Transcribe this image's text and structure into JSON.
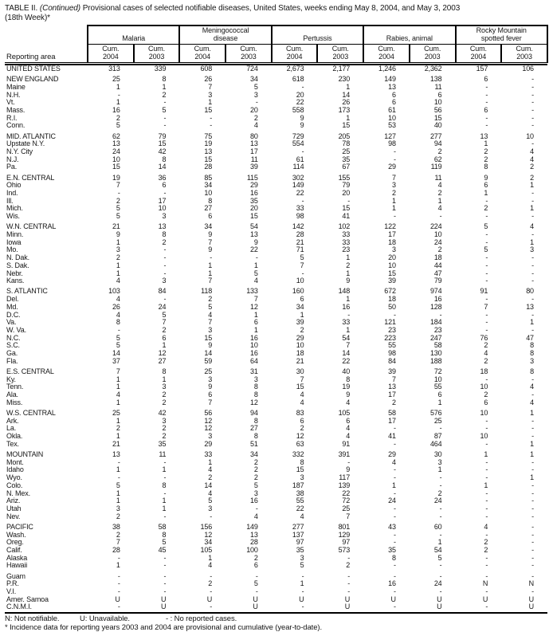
{
  "title": {
    "label": "TABLE II.",
    "continued": "(Continued)",
    "text": "Provisional cases of selected notifiable diseases, United States, weeks ending May 8, 2004, and May 3, 2003",
    "week": "(18th Week)*"
  },
  "table": {
    "reporting_area_label": "Reporting area",
    "column_groups": [
      {
        "name": "Malaria",
        "sub": [
          "Cum.\n2004",
          "Cum.\n2003"
        ]
      },
      {
        "name": "Meningococcal\ndisease",
        "sub": [
          "Cum.\n2004",
          "Cum.\n2003"
        ]
      },
      {
        "name": "Pertussis",
        "sub": [
          "Cum.\n2004",
          "Cum.\n2003"
        ]
      },
      {
        "name": "Rabies, animal",
        "sub": [
          "Cum.\n2004",
          "Cum.\n2003"
        ]
      },
      {
        "name": "Rocky Mountain\nspotted fever",
        "sub": [
          "Cum.\n2004",
          "Cum.\n2003"
        ]
      }
    ],
    "sections": [
      {
        "rows": [
          [
            "UNITED STATES",
            "313",
            "339",
            "608",
            "724",
            "2,673",
            "2,177",
            "1,246",
            "2,362",
            "157",
            "106"
          ]
        ]
      },
      {
        "rows": [
          [
            "NEW ENGLAND",
            "25",
            "8",
            "26",
            "34",
            "618",
            "230",
            "149",
            "138",
            "6",
            "-"
          ],
          [
            "Maine",
            "1",
            "1",
            "7",
            "5",
            "-",
            "1",
            "13",
            "11",
            "-",
            "-"
          ],
          [
            "N.H.",
            "-",
            "2",
            "3",
            "3",
            "20",
            "14",
            "6",
            "6",
            "-",
            "-"
          ],
          [
            "Vt.",
            "1",
            "-",
            "1",
            "-",
            "22",
            "26",
            "6",
            "10",
            "-",
            "-"
          ],
          [
            "Mass.",
            "16",
            "5",
            "15",
            "20",
            "558",
            "173",
            "61",
            "56",
            "6",
            "-"
          ],
          [
            "R.I.",
            "2",
            "-",
            "-",
            "2",
            "9",
            "1",
            "10",
            "15",
            "-",
            "-"
          ],
          [
            "Conn.",
            "5",
            "-",
            "-",
            "4",
            "9",
            "15",
            "53",
            "40",
            "-",
            "-"
          ]
        ]
      },
      {
        "rows": [
          [
            "MID. ATLANTIC",
            "62",
            "79",
            "75",
            "80",
            "729",
            "205",
            "127",
            "277",
            "13",
            "10"
          ],
          [
            "Upstate N.Y.",
            "13",
            "15",
            "19",
            "13",
            "554",
            "78",
            "98",
            "94",
            "1",
            "-"
          ],
          [
            "N.Y. City",
            "24",
            "42",
            "13",
            "17",
            "-",
            "25",
            "-",
            "2",
            "2",
            "4"
          ],
          [
            "N.J.",
            "10",
            "8",
            "15",
            "11",
            "61",
            "35",
            "-",
            "62",
            "2",
            "4"
          ],
          [
            "Pa.",
            "15",
            "14",
            "28",
            "39",
            "114",
            "67",
            "29",
            "119",
            "8",
            "2"
          ]
        ]
      },
      {
        "rows": [
          [
            "E.N. CENTRAL",
            "19",
            "36",
            "85",
            "115",
            "302",
            "155",
            "7",
            "11",
            "9",
            "2"
          ],
          [
            "Ohio",
            "7",
            "6",
            "34",
            "29",
            "149",
            "79",
            "3",
            "4",
            "6",
            "1"
          ],
          [
            "Ind.",
            "-",
            "-",
            "10",
            "16",
            "22",
            "20",
            "2",
            "2",
            "1",
            "-"
          ],
          [
            "Ill.",
            "2",
            "17",
            "8",
            "35",
            "-",
            "-",
            "1",
            "1",
            "-",
            "-"
          ],
          [
            "Mich.",
            "5",
            "10",
            "27",
            "20",
            "33",
            "15",
            "1",
            "4",
            "2",
            "1"
          ],
          [
            "Wis.",
            "5",
            "3",
            "6",
            "15",
            "98",
            "41",
            "-",
            "-",
            "-",
            "-"
          ]
        ]
      },
      {
        "rows": [
          [
            "W.N. CENTRAL",
            "21",
            "13",
            "34",
            "54",
            "142",
            "102",
            "122",
            "224",
            "5",
            "4"
          ],
          [
            "Minn.",
            "9",
            "8",
            "9",
            "13",
            "28",
            "33",
            "17",
            "10",
            "-",
            "-"
          ],
          [
            "Iowa",
            "1",
            "2",
            "7",
            "9",
            "21",
            "33",
            "18",
            "24",
            "-",
            "1"
          ],
          [
            "Mo.",
            "3",
            "-",
            "9",
            "22",
            "71",
            "23",
            "3",
            "2",
            "5",
            "3"
          ],
          [
            "N. Dak.",
            "2",
            "-",
            "-",
            "-",
            "5",
            "1",
            "20",
            "18",
            "-",
            "-"
          ],
          [
            "S. Dak.",
            "1",
            "-",
            "1",
            "1",
            "7",
            "2",
            "10",
            "44",
            "-",
            "-"
          ],
          [
            "Nebr.",
            "1",
            "-",
            "1",
            "5",
            "-",
            "1",
            "15",
            "47",
            "-",
            "-"
          ],
          [
            "Kans.",
            "4",
            "3",
            "7",
            "4",
            "10",
            "9",
            "39",
            "79",
            "-",
            "-"
          ]
        ]
      },
      {
        "rows": [
          [
            "S. ATLANTIC",
            "103",
            "84",
            "118",
            "133",
            "160",
            "148",
            "672",
            "974",
            "91",
            "80"
          ],
          [
            "Del.",
            "4",
            "-",
            "2",
            "7",
            "6",
            "1",
            "18",
            "16",
            "-",
            "-"
          ],
          [
            "Md.",
            "26",
            "24",
            "5",
            "12",
            "34",
            "16",
            "50",
            "128",
            "7",
            "13"
          ],
          [
            "D.C.",
            "4",
            "5",
            "4",
            "1",
            "1",
            "-",
            "-",
            "-",
            "-",
            "-"
          ],
          [
            "Va.",
            "8",
            "7",
            "7",
            "6",
            "39",
            "33",
            "121",
            "184",
            "-",
            "1"
          ],
          [
            "W. Va.",
            "-",
            "2",
            "3",
            "1",
            "2",
            "1",
            "23",
            "23",
            "-",
            "-"
          ],
          [
            "N.C.",
            "5",
            "6",
            "15",
            "16",
            "29",
            "54",
            "223",
            "247",
            "76",
            "47"
          ],
          [
            "S.C.",
            "5",
            "1",
            "9",
            "10",
            "10",
            "7",
            "55",
            "58",
            "2",
            "8"
          ],
          [
            "Ga.",
            "14",
            "12",
            "14",
            "16",
            "18",
            "14",
            "98",
            "130",
            "4",
            "8"
          ],
          [
            "Fla.",
            "37",
            "27",
            "59",
            "64",
            "21",
            "22",
            "84",
            "188",
            "2",
            "3"
          ]
        ]
      },
      {
        "rows": [
          [
            "E.S. CENTRAL",
            "7",
            "8",
            "25",
            "31",
            "30",
            "40",
            "39",
            "72",
            "18",
            "8"
          ],
          [
            "Ky.",
            "1",
            "1",
            "3",
            "3",
            "7",
            "8",
            "7",
            "10",
            "-",
            "-"
          ],
          [
            "Tenn.",
            "1",
            "3",
            "9",
            "8",
            "15",
            "19",
            "13",
            "55",
            "10",
            "4"
          ],
          [
            "Ala.",
            "4",
            "2",
            "6",
            "8",
            "4",
            "9",
            "17",
            "6",
            "2",
            "-"
          ],
          [
            "Miss.",
            "1",
            "2",
            "7",
            "12",
            "4",
            "4",
            "2",
            "1",
            "6",
            "4"
          ]
        ]
      },
      {
        "rows": [
          [
            "W.S. CENTRAL",
            "25",
            "42",
            "56",
            "94",
            "83",
            "105",
            "58",
            "576",
            "10",
            "1"
          ],
          [
            "Ark.",
            "1",
            "3",
            "12",
            "8",
            "6",
            "6",
            "17",
            "25",
            "-",
            "-"
          ],
          [
            "La.",
            "2",
            "2",
            "12",
            "27",
            "2",
            "4",
            "-",
            "-",
            "-",
            "-"
          ],
          [
            "Okla.",
            "1",
            "2",
            "3",
            "8",
            "12",
            "4",
            "41",
            "87",
            "10",
            "-"
          ],
          [
            "Tex.",
            "21",
            "35",
            "29",
            "51",
            "63",
            "91",
            "-",
            "464",
            "-",
            "1"
          ]
        ]
      },
      {
        "rows": [
          [
            "MOUNTAIN",
            "13",
            "11",
            "33",
            "34",
            "332",
            "391",
            "29",
            "30",
            "1",
            "1"
          ],
          [
            "Mont.",
            "-",
            "-",
            "1",
            "2",
            "8",
            "-",
            "4",
            "3",
            "-",
            "-"
          ],
          [
            "Idaho",
            "1",
            "1",
            "4",
            "2",
            "15",
            "9",
            "-",
            "1",
            "-",
            "-"
          ],
          [
            "Wyo.",
            "-",
            "-",
            "2",
            "2",
            "3",
            "117",
            "-",
            "-",
            "-",
            "1"
          ],
          [
            "Colo.",
            "5",
            "8",
            "14",
            "5",
            "187",
            "139",
            "1",
            "-",
            "1",
            "-"
          ],
          [
            "N. Mex.",
            "1",
            "-",
            "4",
            "3",
            "38",
            "22",
            "-",
            "2",
            "-",
            "-"
          ],
          [
            "Ariz.",
            "1",
            "1",
            "5",
            "16",
            "55",
            "72",
            "24",
            "24",
            "-",
            "-"
          ],
          [
            "Utah",
            "3",
            "1",
            "3",
            "-",
            "22",
            "25",
            "-",
            "-",
            "-",
            "-"
          ],
          [
            "Nev.",
            "2",
            "-",
            "-",
            "4",
            "4",
            "7",
            "-",
            "-",
            "-",
            "-"
          ]
        ]
      },
      {
        "rows": [
          [
            "PACIFIC",
            "38",
            "58",
            "156",
            "149",
            "277",
            "801",
            "43",
            "60",
            "4",
            "-"
          ],
          [
            "Wash.",
            "2",
            "8",
            "12",
            "13",
            "137",
            "129",
            "-",
            "-",
            "-",
            "-"
          ],
          [
            "Oreg.",
            "7",
            "5",
            "34",
            "28",
            "97",
            "97",
            "-",
            "1",
            "2",
            "-"
          ],
          [
            "Calif.",
            "28",
            "45",
            "105",
            "100",
            "35",
            "573",
            "35",
            "54",
            "2",
            "-"
          ],
          [
            "Alaska",
            "-",
            "-",
            "1",
            "2",
            "3",
            "-",
            "8",
            "5",
            "-",
            "-"
          ],
          [
            "Hawaii",
            "1",
            "-",
            "4",
            "6",
            "5",
            "2",
            "-",
            "-",
            "-",
            "-"
          ]
        ]
      },
      {
        "rows": [
          [
            "Guam",
            "-",
            "-",
            "-",
            "-",
            "-",
            "-",
            "-",
            "-",
            "-",
            "-"
          ],
          [
            "P.R.",
            "-",
            "-",
            "2",
            "5",
            "1",
            "-",
            "16",
            "24",
            "N",
            "N"
          ],
          [
            "V.I.",
            "-",
            "-",
            "-",
            "-",
            "-",
            "-",
            "-",
            "-",
            "-",
            "-"
          ],
          [
            "Amer. Samoa",
            "U",
            "U",
            "U",
            "U",
            "U",
            "U",
            "U",
            "U",
            "U",
            "U"
          ],
          [
            "C.N.M.I.",
            "-",
            "U",
            "-",
            "U",
            "-",
            "U",
            "-",
            "U",
            "-",
            "U"
          ]
        ]
      }
    ]
  },
  "footnotes": {
    "legend_n": "N: Not notifiable.",
    "legend_u": "U: Unavailable.",
    "legend_dash": "- : No reported cases.",
    "incidence_note": "* Incidence data for reporting years 2003 and 2004 are provisional and cumulative (year-to-date)."
  }
}
